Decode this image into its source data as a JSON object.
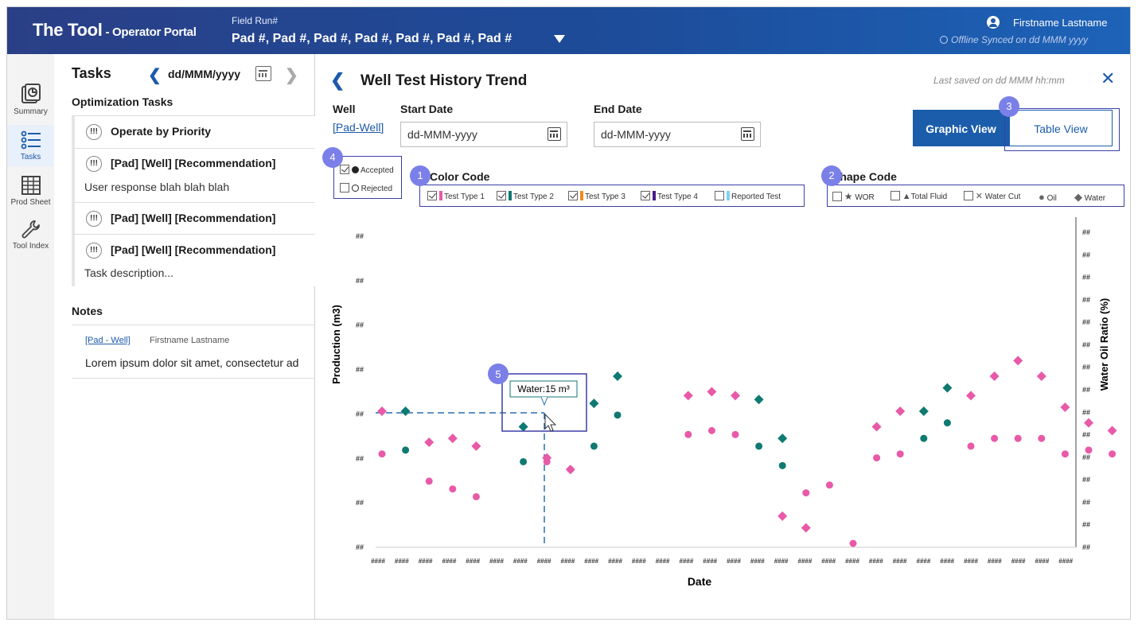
{
  "header": {
    "app_name": "The Tool",
    "app_sub": " - Operator Portal",
    "field_run_label": "Field Run#",
    "field_run_value": "Pad #, Pad #, Pad #, Pad #, Pad #, Pad #, Pad #",
    "user_name": "Firstname Lastname",
    "status": "Offline   Synced on dd  MMM yyyy"
  },
  "nav": {
    "items": [
      {
        "label": "Summary"
      },
      {
        "label": "Tasks"
      },
      {
        "label": "Prod Sheet"
      },
      {
        "label": "Tool Index"
      }
    ]
  },
  "tasks": {
    "title": "Tasks",
    "date": "dd/MMM/yyyy",
    "optimization_title": "Optimization Tasks",
    "priority_glyph": "!!!",
    "items": [
      {
        "title": "Operate by Priority",
        "desc": ""
      },
      {
        "title": "[Pad] [Well] [Recommendation]",
        "desc": "User response blah blah blah"
      },
      {
        "title": "[Pad] [Well] [Recommendation]",
        "desc": ""
      },
      {
        "title": "[Pad] [Well] [Recommendation]",
        "desc": "Task description..."
      }
    ],
    "notes_title": "Notes",
    "note": {
      "link": "[Pad - Well]",
      "author": "Firstname Lastname",
      "text": "Lorem ipsum dolor sit amet, consectetur ad"
    }
  },
  "main": {
    "title": "Well Test History Trend",
    "last_saved": "Last saved on dd MMM hh:mm",
    "well_label": "Well",
    "well_link": "[Pad-Well]",
    "start_label": "Start Date",
    "start_value": "dd-MMM-yyyy",
    "end_label": "End Date",
    "end_value": "dd-MMM-yyyy",
    "graphic_view": "Graphic View",
    "table_view": "Table View",
    "status_filters": [
      {
        "label": "Accepted",
        "checked": true
      },
      {
        "label": "Rejected",
        "checked": false
      }
    ],
    "color_code_title": "Color Code",
    "color_codes": [
      {
        "label": "Test Type 1",
        "checked": true,
        "color": "#e85aa8"
      },
      {
        "label": "Test Type 2",
        "checked": true,
        "color": "#0f7a72"
      },
      {
        "label": "Test Type 3",
        "checked": true,
        "color": "#f08a22"
      },
      {
        "label": "Test Type 4",
        "checked": true,
        "color": "#4b1a8a"
      },
      {
        "label": "Reported Test",
        "checked": false,
        "color": "#7fd0ee"
      }
    ],
    "shape_code_title": "Shape Code",
    "shape_codes": [
      {
        "label": "WOR",
        "glyph": "★"
      },
      {
        "label": "Total Fluid",
        "glyph": "▲"
      },
      {
        "label": "Water Cut",
        "glyph": "✕"
      },
      {
        "label": "Oil",
        "glyph": "●"
      },
      {
        "label": "Water",
        "glyph": "◆"
      }
    ],
    "badges": [
      "1",
      "2",
      "3",
      "4",
      "5"
    ],
    "tooltip": "Water:15 m³"
  },
  "chart_data": {
    "type": "scatter",
    "xlabel": "Date",
    "ylabel": "Production (m3)",
    "y2label": "Water Oil Ratio (%)",
    "tick_label": "##",
    "x_tick_label": "####",
    "categories": 30,
    "ylim": [
      0,
      8
    ],
    "series": [
      {
        "name": "Test Type 1",
        "color": "#e85aa8",
        "shape": "diamond",
        "points": [
          [
            0,
            3.5
          ],
          [
            2,
            2.7
          ],
          [
            3,
            2.8
          ],
          [
            4,
            2.6
          ],
          [
            7,
            2.3
          ],
          [
            8,
            2.0
          ],
          [
            13,
            3.9
          ],
          [
            14,
            4.0
          ],
          [
            15,
            3.9
          ],
          [
            17,
            0.8
          ],
          [
            18,
            0.5
          ],
          [
            21,
            3.1
          ],
          [
            22,
            3.5
          ],
          [
            25,
            3.9
          ],
          [
            26,
            4.4
          ],
          [
            27,
            4.8
          ],
          [
            28,
            4.4
          ],
          [
            29,
            3.6
          ],
          [
            30,
            3.2
          ],
          [
            31,
            3.0
          ]
        ]
      },
      {
        "name": "Test Type 1",
        "color": "#e85aa8",
        "shape": "circle",
        "points": [
          [
            0,
            2.4
          ],
          [
            2,
            1.7
          ],
          [
            3,
            1.5
          ],
          [
            4,
            1.3
          ],
          [
            7,
            2.2
          ],
          [
            8,
            2.0
          ],
          [
            13,
            2.9
          ],
          [
            14,
            3.0
          ],
          [
            15,
            2.9
          ],
          [
            18,
            1.4
          ],
          [
            19,
            1.6
          ],
          [
            20,
            0.1
          ],
          [
            21,
            2.3
          ],
          [
            22,
            2.4
          ],
          [
            25,
            2.6
          ],
          [
            26,
            2.8
          ],
          [
            27,
            2.8
          ],
          [
            28,
            2.8
          ],
          [
            29,
            2.4
          ],
          [
            30,
            2.5
          ],
          [
            31,
            2.4
          ]
        ]
      },
      {
        "name": "Test Type 2",
        "color": "#0f7a72",
        "shape": "diamond",
        "points": [
          [
            1,
            3.5
          ],
          [
            6,
            3.1
          ],
          [
            9,
            3.7
          ],
          [
            10,
            4.4
          ],
          [
            16,
            3.8
          ],
          [
            17,
            2.8
          ],
          [
            23,
            3.5
          ],
          [
            24,
            4.1
          ]
        ]
      },
      {
        "name": "Test Type 2",
        "color": "#0f7a72",
        "shape": "circle",
        "points": [
          [
            1,
            2.5
          ],
          [
            6,
            2.2
          ],
          [
            9,
            2.6
          ],
          [
            10,
            3.4
          ],
          [
            16,
            2.6
          ],
          [
            17,
            2.1
          ],
          [
            23,
            2.8
          ],
          [
            24,
            3.2
          ]
        ]
      }
    ]
  }
}
